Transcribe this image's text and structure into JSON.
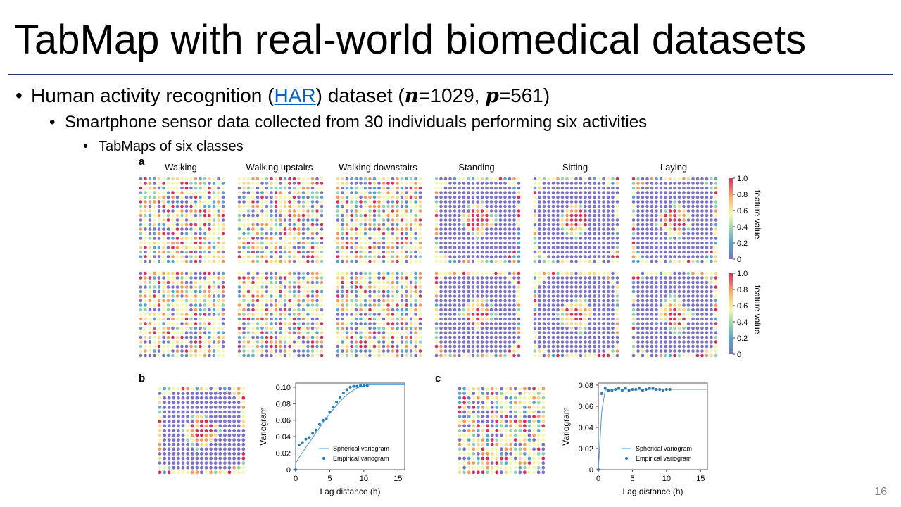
{
  "slide": {
    "title": "TabMap with real-world biomedical datasets",
    "page_number": "16",
    "bullets": {
      "l1_prefix": "Human activity recognition (",
      "l1_link": "HAR",
      "l1_mid": ") dataset (",
      "l1_n_var": "n",
      "l1_n_val": "=1029, ",
      "l1_p_var": "p",
      "l1_p_val": "=561)",
      "l2": "Smartphone sensor data collected from 30 individuals performing six activities",
      "l3": "TabMaps of six classes"
    }
  },
  "figure": {
    "panel_a_label": "a",
    "panel_b_label": "b",
    "panel_c_label": "c",
    "classes": [
      "Walking",
      "Walking upstairs",
      "Walking downstairs",
      "Standing",
      "Sitting",
      "Laying"
    ],
    "colorbar": {
      "label": "feature value",
      "ticks": [
        "1.0",
        "0.8",
        "0.6",
        "0.4",
        "0.2",
        "0"
      ]
    },
    "colors": {
      "low": "#7b72c8",
      "accent_series": "#2a7ab9",
      "rule": "#1f3864"
    }
  },
  "chart_data": [
    {
      "type": "scatter",
      "panel": "b",
      "xlabel": "Lag distance (h)",
      "ylabel": "Variogram",
      "xlim": [
        0,
        16
      ],
      "ylim": [
        0,
        0.105
      ],
      "x_ticks": [
        "0",
        "5",
        "10",
        "15"
      ],
      "y_ticks": [
        "0",
        "0.02",
        "0.04",
        "0.06",
        "0.08",
        "0.10"
      ],
      "legend": [
        "Spherical variogram",
        "Empirical variogram"
      ],
      "legend_position": "bottom-right",
      "series": [
        {
          "name": "Empirical variogram",
          "x": [
            0,
            0.5,
            1,
            1.5,
            2,
            2.5,
            3,
            3.5,
            4,
            4.5,
            5,
            5.5,
            6,
            6.5,
            7,
            7.5,
            8,
            8.5,
            9,
            9.5,
            10,
            10.5
          ],
          "y": [
            0.0,
            0.03,
            0.033,
            0.037,
            0.039,
            0.044,
            0.048,
            0.055,
            0.06,
            0.062,
            0.07,
            0.076,
            0.082,
            0.088,
            0.093,
            0.097,
            0.1,
            0.101,
            0.101,
            0.102,
            0.102,
            0.102
          ]
        },
        {
          "name": "Spherical variogram",
          "x": [
            0,
            1,
            2,
            3,
            4,
            5,
            6,
            7,
            8,
            9,
            10,
            11,
            12,
            13,
            14,
            15,
            16
          ],
          "y": [
            0.008,
            0.021,
            0.033,
            0.045,
            0.057,
            0.068,
            0.078,
            0.087,
            0.094,
            0.099,
            0.102,
            0.103,
            0.103,
            0.103,
            0.103,
            0.103,
            0.103
          ]
        }
      ]
    },
    {
      "type": "scatter",
      "panel": "c",
      "xlabel": "Lag distance (h)",
      "ylabel": "Variogram",
      "xlim": [
        0,
        16
      ],
      "ylim": [
        0,
        0.082
      ],
      "x_ticks": [
        "0",
        "5",
        "10",
        "15"
      ],
      "y_ticks": [
        "0",
        "0.02",
        "0.04",
        "0.06",
        "0.08"
      ],
      "legend": [
        "Spherical variogram",
        "Empirical variogram"
      ],
      "legend_position": "bottom-right",
      "series": [
        {
          "name": "Empirical variogram",
          "x": [
            0,
            0.5,
            1,
            1.5,
            2,
            2.5,
            3,
            3.5,
            4,
            4.5,
            5,
            5.5,
            6,
            6.5,
            7,
            7.5,
            8,
            8.5,
            9,
            9.5,
            10,
            10.5
          ],
          "y": [
            0.0,
            0.072,
            0.077,
            0.075,
            0.075,
            0.076,
            0.077,
            0.075,
            0.077,
            0.075,
            0.076,
            0.076,
            0.077,
            0.075,
            0.076,
            0.077,
            0.077,
            0.076,
            0.076,
            0.075,
            0.076,
            0.076
          ]
        },
        {
          "name": "Spherical variogram",
          "x": [
            0,
            0.5,
            1,
            1.5,
            2,
            4,
            6,
            8,
            10,
            12,
            14,
            16
          ],
          "y": [
            0.0,
            0.055,
            0.075,
            0.076,
            0.076,
            0.076,
            0.076,
            0.076,
            0.076,
            0.076,
            0.076,
            0.076
          ]
        }
      ]
    }
  ]
}
